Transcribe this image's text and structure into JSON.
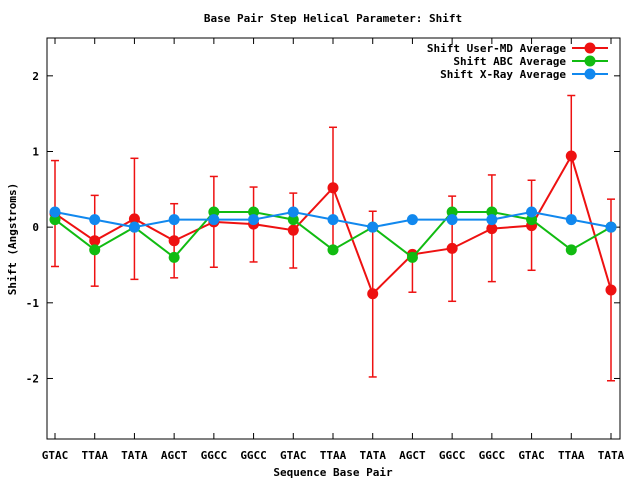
{
  "chart_data": {
    "type": "line",
    "title": "Base Pair Step Helical Parameter: Shift",
    "xlabel": "Sequence Base Pair",
    "ylabel": "Shift (Angstroms)",
    "categories": [
      "GTAC",
      "TTAA",
      "TATA",
      "AGCT",
      "GGCC",
      "GGCC",
      "GTAC",
      "TTAA",
      "TATA",
      "AGCT",
      "GGCC",
      "GGCC",
      "GTAC",
      "TTAA",
      "TATA"
    ],
    "ylim": [
      -2.8,
      2.5
    ],
    "yticks": [
      -2,
      -1,
      0,
      1,
      2
    ],
    "grid": false,
    "legend_position": "top-right",
    "series": [
      {
        "name": "Shift User-MD Average",
        "color": "#ee1111",
        "values": [
          0.18,
          -0.18,
          0.11,
          -0.18,
          0.07,
          0.04,
          -0.04,
          0.52,
          -0.88,
          -0.36,
          -0.28,
          -0.02,
          0.02,
          0.94,
          -0.83
        ],
        "error_low": [
          -0.52,
          -0.78,
          -0.69,
          -0.67,
          -0.53,
          -0.46,
          -0.54,
          -0.28,
          -1.98,
          -0.86,
          -0.98,
          -0.72,
          -0.57,
          0.14,
          -2.03
        ],
        "error_high": [
          0.88,
          0.42,
          0.91,
          0.31,
          0.67,
          0.53,
          0.45,
          1.32,
          0.21,
          -0.36,
          0.41,
          0.69,
          0.62,
          1.74,
          0.37
        ]
      },
      {
        "name": "Shift ABC Average",
        "color": "#11bb11",
        "values": [
          0.1,
          -0.3,
          0.0,
          -0.4,
          0.2,
          0.2,
          0.1,
          -0.3,
          0.0,
          -0.4,
          0.2,
          0.2,
          0.1,
          -0.3,
          0.0
        ]
      },
      {
        "name": "Shift X-Ray Average",
        "color": "#1188ee",
        "values": [
          0.2,
          0.1,
          0.0,
          0.1,
          0.1,
          0.1,
          0.2,
          0.1,
          0.0,
          0.1,
          0.1,
          0.1,
          0.2,
          0.1,
          0.0
        ]
      }
    ]
  }
}
